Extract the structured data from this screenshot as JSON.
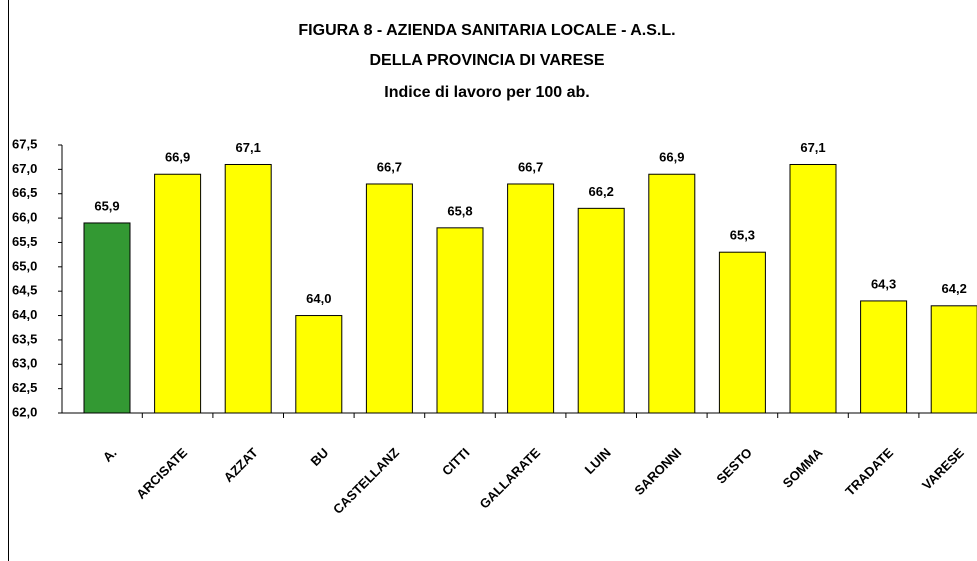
{
  "chart_data": {
    "type": "bar",
    "title": [
      "FIGURA 8 - AZIENDA SANITARIA LOCALE - A.S.L.",
      "DELLA PROVINCIA DI VARESE",
      "Indice di lavoro per 100 ab."
    ],
    "categories": [
      "A.",
      "ARCISATE",
      "AZZAT",
      "BU",
      "CASTELLANZ",
      "CITTI",
      "GALLARATE",
      "LUIN",
      "SARONNI",
      "SESTO",
      "SOMMA",
      "TRADATE",
      "VARESE"
    ],
    "values": [
      65.9,
      66.9,
      67.1,
      64.0,
      66.7,
      65.8,
      66.7,
      66.2,
      66.9,
      65.3,
      67.1,
      64.3,
      64.2
    ],
    "value_labels": [
      "65,9",
      "66,9",
      "67,1",
      "64,0",
      "66,7",
      "65,8",
      "66,7",
      "66,2",
      "66,9",
      "65,3",
      "67,1",
      "64,3",
      "64,2"
    ],
    "colors": [
      "#339933",
      "#ffff00",
      "#ffff00",
      "#ffff00",
      "#ffff00",
      "#ffff00",
      "#ffff00",
      "#ffff00",
      "#ffff00",
      "#ffff00",
      "#ffff00",
      "#ffff00",
      "#ffff00"
    ],
    "ylim": [
      62,
      67.5
    ],
    "yticks": [
      {
        "value": 62,
        "label": "62,0"
      },
      {
        "value": 62.5,
        "label": "62,5"
      },
      {
        "value": 63,
        "label": "63,0"
      },
      {
        "value": 63.5,
        "label": "63,5"
      },
      {
        "value": 64,
        "label": "64,0"
      },
      {
        "value": 64.5,
        "label": "64,5"
      },
      {
        "value": 65,
        "label": "65,0"
      },
      {
        "value": 65.5,
        "label": "65,5"
      },
      {
        "value": 66,
        "label": "66,0"
      },
      {
        "value": 66.5,
        "label": "66,5"
      },
      {
        "value": 67,
        "label": "67,0"
      },
      {
        "value": 67.5,
        "label": "67,5"
      }
    ]
  }
}
